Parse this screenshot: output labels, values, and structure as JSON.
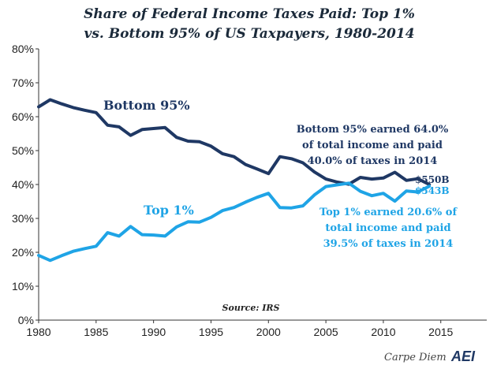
{
  "chart_data": {
    "type": "line",
    "title_line1": "Share of Federal Income Taxes Paid: Top 1%",
    "title_line2": "vs. Bottom 95% of US Taxpayers, 1980-2014",
    "ylim": [
      0,
      80
    ],
    "xlim": [
      1980,
      2019
    ],
    "y_ticks": [
      "0%",
      "10%",
      "20%",
      "30%",
      "40%",
      "50%",
      "60%",
      "70%",
      "80%"
    ],
    "x_ticks": [
      "1980",
      "1985",
      "1990",
      "1995",
      "2000",
      "2005",
      "2010",
      "2015"
    ],
    "grid": false,
    "x": [
      1980,
      1981,
      1982,
      1983,
      1984,
      1985,
      1986,
      1987,
      1988,
      1989,
      1990,
      1991,
      1992,
      1993,
      1994,
      1995,
      1996,
      1997,
      1998,
      1999,
      2000,
      2001,
      2002,
      2003,
      2004,
      2005,
      2006,
      2007,
      2008,
      2009,
      2010,
      2011,
      2012,
      2013,
      2014
    ],
    "series": [
      {
        "name": "Bottom 95%",
        "color": "#1f3864",
        "values": [
          62.9,
          65.0,
          63.8,
          62.7,
          61.9,
          61.2,
          57.5,
          57.0,
          54.5,
          56.2,
          56.5,
          56.8,
          53.9,
          52.8,
          52.6,
          51.3,
          49.1,
          48.2,
          45.9,
          44.6,
          43.2,
          48.2,
          47.6,
          46.4,
          43.7,
          41.6,
          40.7,
          40.1,
          42.1,
          41.6,
          41.9,
          43.6,
          41.2,
          41.7,
          40.0
        ]
      },
      {
        "name": "Top 1%",
        "color": "#1fa4e6",
        "values": [
          19.1,
          17.6,
          19.0,
          20.3,
          21.1,
          21.8,
          25.8,
          24.8,
          27.6,
          25.2,
          25.1,
          24.8,
          27.5,
          29.0,
          28.9,
          30.3,
          32.3,
          33.2,
          34.8,
          36.2,
          37.4,
          33.2,
          33.1,
          33.7,
          36.9,
          39.4,
          39.9,
          40.4,
          38.0,
          36.7,
          37.4,
          35.1,
          38.1,
          37.8,
          39.5
        ]
      }
    ],
    "annotations": {
      "bottom_label": "Bottom 95%",
      "top_label": "Top 1%",
      "bottom_note": [
        "Bottom 95% earned 64.0%",
        "of total income and paid",
        "40.0% of taxes in 2014"
      ],
      "top_note": [
        "Top 1% earned 20.6% of",
        "total income and paid",
        "39.5% of taxes in 2014"
      ],
      "bottom_end": "$550B",
      "top_end": "$543B"
    },
    "source": "Source: IRS",
    "footer": "Carpe Diem",
    "logo": "AEI"
  }
}
